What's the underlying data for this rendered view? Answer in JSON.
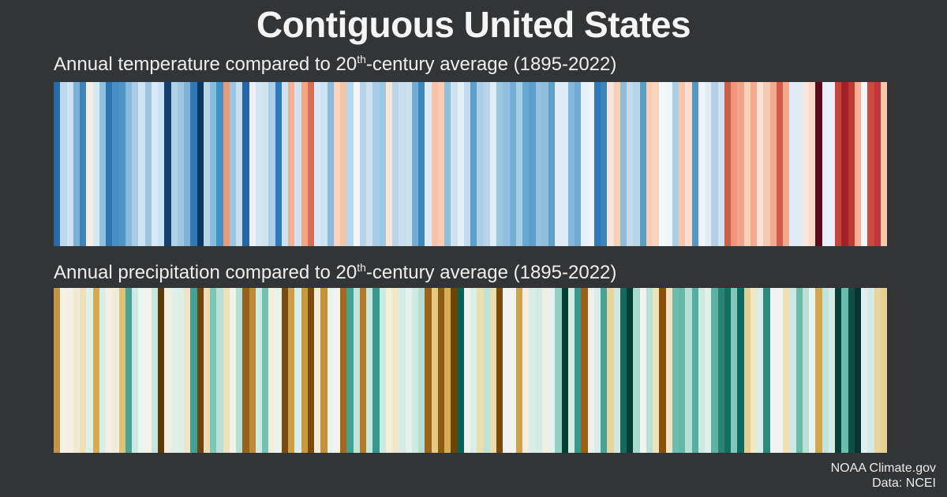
{
  "page": {
    "background_color": "#333435",
    "text_color": "#f5f5f5"
  },
  "title": "Contiguous United States",
  "credits": {
    "line1": "NOAA Climate.gov",
    "line2": "Data: NCEI"
  },
  "chart_data": [
    {
      "id": "temperature",
      "type": "heatmap",
      "variant": "climate-stripes",
      "title_text": "Annual temperature compared to 20th-century average (1895-2022)",
      "title_parts": {
        "prefix": "Annual temperature compared to 20",
        "superscript": "th",
        "suffix": "-century average (1895-2022)"
      },
      "x_range": [
        1895,
        2022
      ],
      "n_years": 128,
      "legend_position": "none",
      "grid": false,
      "encoding": "one vertical stripe per year, left=1895 to right=2022; blue = cooler than 20th-century average, white = near average, orange/red = warmer than average, dark maroon = hottest year",
      "scale_colors": {
        "coolest": "#0d3661",
        "neutral": "#f4f6f8",
        "warmest": "#5c0a1e"
      },
      "colors": [
        "#2a6aab",
        "#bdd8eb",
        "#cfe2f0",
        "#7cb0d5",
        "#3d85bd",
        "#f7ece4",
        "#d8e8f3",
        "#8fc0de",
        "#2d74b0",
        "#4690c4",
        "#4d95c9",
        "#85b8da",
        "#a9cde6",
        "#cfe3f1",
        "#9cc5e1",
        "#d7e8f4",
        "#cde0ef",
        "#14406e",
        "#b0d0e6",
        "#9dc6e2",
        "#7fb4d8",
        "#3579b4",
        "#0d3661",
        "#b8d5e9",
        "#88bcdd",
        "#4390c4",
        "#ef9878",
        "#9dc6e2",
        "#c7deef",
        "#2565ab",
        "#eef2f7",
        "#d4e5f1",
        "#cfe2f0",
        "#aacee7",
        "#2f7ab8",
        "#cde1ef",
        "#f2b197",
        "#cfe2f0",
        "#f0a685",
        "#d96d55",
        "#d9e8f2",
        "#cfe2f0",
        "#88bbdc",
        "#f8d3bb",
        "#f3c4a4",
        "#b8d6ea",
        "#f3f6f8",
        "#b4d3e8",
        "#cde1ef",
        "#a9cde6",
        "#9fc8e3",
        "#f9e4d4",
        "#bcd6e8",
        "#c9def0",
        "#cde1ef",
        "#72acd3",
        "#3e86be",
        "#dceaf4",
        "#f7c4a8",
        "#f8cbb2",
        "#90bfde",
        "#cde1ef",
        "#e4eef6",
        "#c3dcee",
        "#5b9fcb",
        "#abcfe7",
        "#b7d4e9",
        "#dfecf5",
        "#9ac6e1",
        "#92c0de",
        "#76afd4",
        "#a5cbe5",
        "#68a7d0",
        "#5d9fcb",
        "#93c1df",
        "#8ebede",
        "#5e9fcc",
        "#dcebf4",
        "#dfecf5",
        "#85b7da",
        "#6fabd2",
        "#e8f0f7",
        "#eef3f8",
        "#2f7ab8",
        "#3b84bd",
        "#f8e6d8",
        "#f6d0b8",
        "#8fbedd",
        "#c3daea",
        "#b9d5e9",
        "#5b9cc9",
        "#f9cfb4",
        "#f8d4bf",
        "#f3f6fa",
        "#eff4f8",
        "#abcfe7",
        "#f7c6a8",
        "#fbe0d0",
        "#5598c7",
        "#f0f4f8",
        "#e3edf5",
        "#b3d2e8",
        "#d3e4f0",
        "#cc5f4a",
        "#ef9678",
        "#f2a488",
        "#f9cfb6",
        "#f4aa8e",
        "#fbe1d7",
        "#f7c9ae",
        "#f4aa8e",
        "#d05c4b",
        "#f2a78a",
        "#dcebf5",
        "#e1edf6",
        "#fbe6dc",
        "#fcd9c8",
        "#5c0a1e",
        "#e8eff6",
        "#eaf0f7",
        "#c5473b",
        "#a02128",
        "#c0392f",
        "#f5b096",
        "#f4f6f8",
        "#cc4a42",
        "#c0363c",
        "#f8c6ab"
      ]
    },
    {
      "id": "precipitation",
      "type": "heatmap",
      "variant": "climate-stripes",
      "title_text": "Annual precipitation compared to 20th-century average (1895-2022)",
      "title_parts": {
        "prefix": "Annual precipitation compared to 20",
        "superscript": "th",
        "suffix": "-century average (1895-2022)"
      },
      "x_range": [
        1895,
        2022
      ],
      "n_years": 128,
      "legend_position": "none",
      "grid": false,
      "encoding": "one vertical stripe per year, left=1895 to right=2022; brown/gold = drier than 20th-century average, cream = near average, teal/green = wetter than average",
      "scale_colors": {
        "driest": "#5b3a08",
        "neutral": "#f4f2ea",
        "wettest": "#043f33"
      },
      "colors": [
        "#c49545",
        "#f6f1e6",
        "#f4efe4",
        "#f1e9d2",
        "#ecdfb9",
        "#dcefe9",
        "#d4aa55",
        "#daeee8",
        "#f4efe2",
        "#f2ecdc",
        "#dfc178",
        "#4aa396",
        "#cfe9e2",
        "#e9f4f0",
        "#f2f0e8",
        "#c8e6de",
        "#5b3a08",
        "#f1ede0",
        "#dff0ea",
        "#ddefe9",
        "#eee3c6",
        "#44a096",
        "#6b4410",
        "#edddb5",
        "#7cc7b8",
        "#b7e0d6",
        "#eee0bb",
        "#f2f1ea",
        "#b5dfd5",
        "#96611c",
        "#c08a35",
        "#cfeae3",
        "#72c2b4",
        "#f1eede",
        "#eaf2ec",
        "#7a4c10",
        "#cda045",
        "#d8eee7",
        "#c89a3f",
        "#7a4a0e",
        "#f0ead6",
        "#c69036",
        "#e6f2ed",
        "#f4f2ea",
        "#a36a1c",
        "#42a294",
        "#c0e4da",
        "#b07b24",
        "#c6e7de",
        "#36998c",
        "#cdeae2",
        "#f3eed9",
        "#f0e8c8",
        "#d4ece5",
        "#e3f1ec",
        "#cfe9e2",
        "#b5ddd2",
        "#9c6418",
        "#e3cc82",
        "#8c5a10",
        "#d4af58",
        "#6b4208",
        "#056156",
        "#eef2ee",
        "#daeee9",
        "#eaddae",
        "#bde2d8",
        "#ecdcaa",
        "#7a4a0c",
        "#eff2ee",
        "#f0f3ef",
        "#cfa14c",
        "#f2ede0",
        "#daeee9",
        "#d5ece6",
        "#f0ede2",
        "#e5f1ec",
        "#94d0c2",
        "#043f33",
        "#d2ebe4",
        "#37998b",
        "#9c6014",
        "#edf1ed",
        "#d8ede7",
        "#46a497",
        "#e8d49c",
        "#cfe9e2",
        "#16695c",
        "#043f35",
        "#a8dbd0",
        "#f1f4f0",
        "#b9e0d7",
        "#efe3b8",
        "#8a4f08",
        "#f0e4c0",
        "#6cbcab",
        "#64b8a8",
        "#b6dfd4",
        "#53afa0",
        "#cde9e1",
        "#e0efe9",
        "#5bb3a4",
        "#2a8274",
        "#107163",
        "#82c8ba",
        "#0b6b5e",
        "#e6cf8e",
        "#f0e7c8",
        "#d9eee8",
        "#2a8a7c",
        "#eff2f0",
        "#f2f3f1",
        "#eee0b4",
        "#cfe9e1",
        "#68bbab",
        "#b9e0d6",
        "#e8f2ee",
        "#d2a84e",
        "#c2e4da",
        "#d3ebe4",
        "#05413a",
        "#6abcae",
        "#0d4f44",
        "#05352e",
        "#dfeef0",
        "#d5ebe5",
        "#e8d49c",
        "#e6d095"
      ]
    }
  ]
}
